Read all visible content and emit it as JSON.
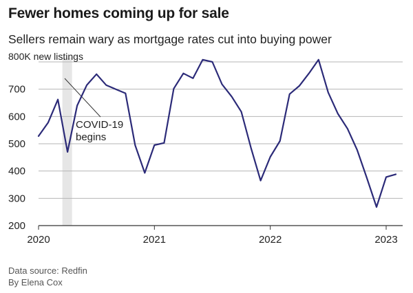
{
  "title": "Fewer homes coming up for sale",
  "subtitle": "Sellers remain wary as mortgage rates cut into buying power",
  "chart_data": {
    "type": "line",
    "title": "Fewer homes coming up for sale",
    "subtitle": "Sellers remain wary as mortgage rates cut into buying power",
    "y_unit_label": "800K new listings",
    "yticks": [
      200,
      300,
      400,
      500,
      600,
      700,
      800
    ],
    "ytick_labels": [
      "200",
      "300",
      "400",
      "500",
      "600",
      "700",
      "800K new listings"
    ],
    "ylim": [
      200,
      800
    ],
    "xticks": [
      {
        "label": "2020",
        "x": "2020-01"
      },
      {
        "label": "2021",
        "x": "2021-01"
      },
      {
        "label": "2022",
        "x": "2022-01"
      },
      {
        "label": "2023",
        "x": "2023-01"
      }
    ],
    "x": [
      "2020-01",
      "2020-02",
      "2020-03",
      "2020-04",
      "2020-05",
      "2020-06",
      "2020-07",
      "2020-08",
      "2020-09",
      "2020-10",
      "2020-11",
      "2020-12",
      "2021-01",
      "2021-02",
      "2021-03",
      "2021-04",
      "2021-05",
      "2021-06",
      "2021-07",
      "2021-08",
      "2021-09",
      "2021-10",
      "2021-11",
      "2021-12",
      "2022-01",
      "2022-02",
      "2022-03",
      "2022-04",
      "2022-05",
      "2022-06",
      "2022-07",
      "2022-08",
      "2022-09",
      "2022-10",
      "2022-11",
      "2022-12",
      "2023-01",
      "2023-02"
    ],
    "values": [
      528,
      578,
      662,
      470,
      640,
      715,
      755,
      715,
      700,
      685,
      495,
      393,
      495,
      503,
      702,
      758,
      740,
      808,
      800,
      718,
      673,
      617,
      485,
      365,
      452,
      510,
      682,
      712,
      758,
      808,
      688,
      610,
      555,
      477,
      375,
      268,
      378,
      388
    ],
    "series_color": "#2b2a78",
    "annotation": {
      "text_lines": [
        "COVID-19",
        "begins"
      ],
      "shaded_x": [
        "2020-03-15",
        "2020-04-15"
      ]
    },
    "grid": true,
    "legend": "none"
  },
  "footer": {
    "source": "Data source: Redfin",
    "byline": "By Elena Cox"
  }
}
